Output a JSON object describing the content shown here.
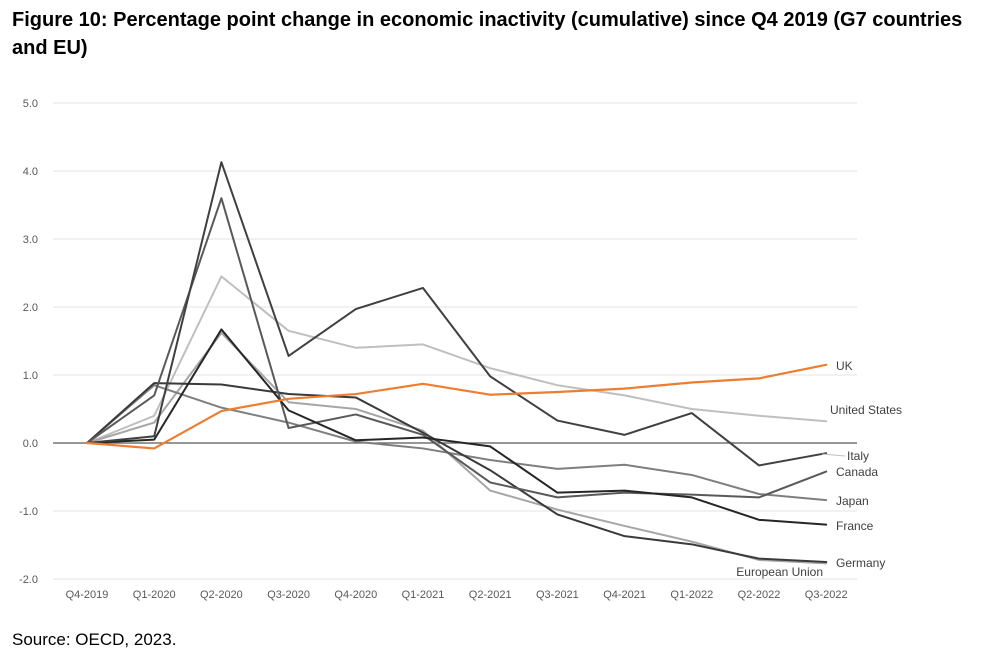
{
  "title": "Figure 10: Percentage point change in economic inactivity (cumulative) since Q4 2019 (G7 countries and EU)",
  "source": "Source: OECD, 2023.",
  "chart_data": {
    "type": "line",
    "categories": [
      "Q4-2019",
      "Q1-2020",
      "Q2-2020",
      "Q3-2020",
      "Q4-2020",
      "Q1-2021",
      "Q2-2021",
      "Q3-2021",
      "Q4-2021",
      "Q1-2022",
      "Q2-2022",
      "Q3-2022"
    ],
    "ylim": [
      -2.0,
      5.0
    ],
    "yticks": [
      "5.0",
      "4.0",
      "3.0",
      "2.0",
      "1.0",
      "0.0",
      "-1.0",
      "-2.0"
    ],
    "ytick_values": [
      5,
      4,
      3,
      2,
      1,
      0,
      -1,
      -2
    ],
    "grid": true,
    "series": [
      {
        "name": "UK",
        "color": "#ed7d31",
        "values": [
          0.0,
          -0.08,
          0.47,
          0.65,
          0.72,
          0.87,
          0.71,
          0.75,
          0.8,
          0.89,
          0.95,
          1.15
        ]
      },
      {
        "name": "United States",
        "color": "#bfbfbf",
        "values": [
          0.0,
          0.4,
          2.45,
          1.65,
          1.4,
          1.45,
          1.1,
          0.85,
          0.7,
          0.5,
          0.4,
          0.32
        ]
      },
      {
        "name": "Italy",
        "color": "#404040",
        "values": [
          0.0,
          0.1,
          4.13,
          1.28,
          1.97,
          2.28,
          0.98,
          0.33,
          0.12,
          0.44,
          -0.33,
          -0.15
        ]
      },
      {
        "name": "Canada",
        "color": "#595959",
        "values": [
          0.0,
          0.7,
          3.6,
          0.22,
          0.42,
          0.12,
          -0.58,
          -0.8,
          -0.73,
          -0.76,
          -0.8,
          -0.42
        ]
      },
      {
        "name": "Japan",
        "color": "#7f7f7f",
        "values": [
          0.0,
          0.85,
          0.52,
          0.3,
          0.02,
          -0.08,
          -0.25,
          -0.38,
          -0.32,
          -0.47,
          -0.75,
          -0.84
        ]
      },
      {
        "name": "France",
        "color": "#262626",
        "values": [
          0.0,
          0.05,
          1.67,
          0.48,
          0.04,
          0.08,
          -0.05,
          -0.73,
          -0.7,
          -0.8,
          -1.13,
          -1.2
        ]
      },
      {
        "name": "Germany",
        "color": "#3a3a3a",
        "values": [
          0.0,
          0.88,
          0.86,
          0.72,
          0.67,
          0.15,
          -0.4,
          -1.05,
          -1.37,
          -1.49,
          -1.7,
          -1.75
        ]
      },
      {
        "name": "European Union",
        "color": "#a6a6a6",
        "values": [
          0.0,
          0.3,
          1.62,
          0.6,
          0.5,
          0.18,
          -0.7,
          -0.98,
          -1.22,
          -1.45,
          -1.72,
          -1.77
        ]
      }
    ],
    "labels": [
      {
        "text": "UK",
        "color": "#404040"
      },
      {
        "text": "United States",
        "color": "#404040"
      },
      {
        "text": "Italy",
        "color": "#404040"
      },
      {
        "text": "Canada",
        "color": "#404040"
      },
      {
        "text": "Japan",
        "color": "#404040"
      },
      {
        "text": "France",
        "color": "#404040"
      },
      {
        "text": "Germany",
        "color": "#404040"
      },
      {
        "text": "European Union",
        "color": "#404040"
      }
    ]
  }
}
